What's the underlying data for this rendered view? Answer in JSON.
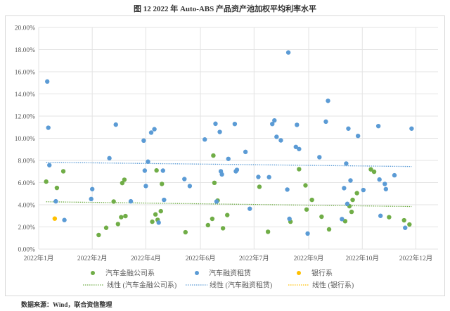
{
  "title": "图 12   2022 年 Auto-ABS 产品资产池加权平均利率水平",
  "source": "数据来源：Wind，联合资信整理",
  "chart_data": {
    "type": "scatter",
    "title": "",
    "xlabel": "",
    "ylabel": "",
    "grid": true,
    "legend_position": "bottom",
    "xlim": [
      "2022-01-01",
      "2023-01-10"
    ],
    "ylim": [
      0,
      20
    ],
    "x_ticks": [
      {
        "date": "2022-01-01",
        "label": "2022年1月"
      },
      {
        "date": "2022-02-20",
        "label": "2022年2月"
      },
      {
        "date": "2022-04-11",
        "label": "2022年4月"
      },
      {
        "date": "2022-06-01",
        "label": "2022年6月"
      },
      {
        "date": "2022-07-21",
        "label": "2022年7月"
      },
      {
        "date": "2022-09-10",
        "label": "2022年9月"
      },
      {
        "date": "2022-10-30",
        "label": "2022年10月"
      },
      {
        "date": "2022-12-19",
        "label": "2022年12月"
      }
    ],
    "y_ticks": [
      {
        "value": 0,
        "label": "0.00%"
      },
      {
        "value": 2,
        "label": "2.00%"
      },
      {
        "value": 4,
        "label": "4.00%"
      },
      {
        "value": 6,
        "label": "6.00%"
      },
      {
        "value": 8,
        "label": "8.00%"
      },
      {
        "value": 10,
        "label": "10.00%"
      },
      {
        "value": 12,
        "label": "12.00%"
      },
      {
        "value": 14,
        "label": "14.00%"
      },
      {
        "value": 16,
        "label": "16.00%"
      },
      {
        "value": 18,
        "label": "18.00%"
      },
      {
        "value": 20,
        "label": "20.00%"
      }
    ],
    "series": [
      {
        "name": "汽车金融公司系",
        "color": "#70ad47",
        "points": [
          [
            "2022-01-08",
            6.09
          ],
          [
            "2022-01-18",
            5.52
          ],
          [
            "2022-01-24",
            7.02
          ],
          [
            "2022-02-26",
            1.27
          ],
          [
            "2022-03-05",
            1.92
          ],
          [
            "2022-03-12",
            4.29
          ],
          [
            "2022-03-16",
            2.26
          ],
          [
            "2022-03-19",
            2.88
          ],
          [
            "2022-03-23",
            2.98
          ],
          [
            "2022-03-20",
            5.96
          ],
          [
            "2022-03-22",
            6.26
          ],
          [
            "2022-04-21",
            7.1
          ],
          [
            "2022-04-26",
            5.88
          ],
          [
            "2022-04-17",
            2.47
          ],
          [
            "2022-04-20",
            3.13
          ],
          [
            "2022-04-22",
            2.64
          ],
          [
            "2022-04-25",
            3.42
          ],
          [
            "2022-05-18",
            1.52
          ],
          [
            "2022-06-13",
            8.44
          ],
          [
            "2022-06-14",
            5.98
          ],
          [
            "2022-06-17",
            4.38
          ],
          [
            "2022-06-08",
            2.16
          ],
          [
            "2022-06-12",
            2.73
          ],
          [
            "2022-06-22",
            1.88
          ],
          [
            "2022-06-26",
            3.07
          ],
          [
            "2022-07-26",
            5.62
          ],
          [
            "2022-08-03",
            1.56
          ],
          [
            "2022-08-24",
            2.47
          ],
          [
            "2022-09-01",
            7.21
          ],
          [
            "2022-09-07",
            5.75
          ],
          [
            "2022-09-08",
            3.57
          ],
          [
            "2022-09-13",
            4.44
          ],
          [
            "2022-09-22",
            2.92
          ],
          [
            "2022-09-29",
            1.78
          ],
          [
            "2022-10-14",
            2.52
          ],
          [
            "2022-10-18",
            3.87
          ],
          [
            "2022-10-21",
            4.44
          ],
          [
            "2022-10-20",
            3.36
          ],
          [
            "2022-10-25",
            5.05
          ],
          [
            "2022-11-07",
            7.19
          ],
          [
            "2022-11-10",
            6.98
          ],
          [
            "2022-11-24",
            2.88
          ],
          [
            "2022-12-08",
            2.6
          ],
          [
            "2022-12-13",
            2.22
          ]
        ]
      },
      {
        "name": "汽车融资租赁",
        "color": "#5b9bd5",
        "points": [
          [
            "2022-01-09",
            15.12
          ],
          [
            "2022-01-10",
            10.95
          ],
          [
            "2022-01-11",
            7.57
          ],
          [
            "2022-01-17",
            4.31
          ],
          [
            "2022-01-25",
            2.62
          ],
          [
            "2022-02-20",
            5.41
          ],
          [
            "2022-02-19",
            4.52
          ],
          [
            "2022-03-08",
            8.2
          ],
          [
            "2022-03-14",
            11.23
          ],
          [
            "2022-03-28",
            4.31
          ],
          [
            "2022-04-09",
            9.79
          ],
          [
            "2022-04-10",
            7.08
          ],
          [
            "2022-04-11",
            5.69
          ],
          [
            "2022-04-13",
            7.89
          ],
          [
            "2022-04-16",
            10.51
          ],
          [
            "2022-04-19",
            10.82
          ],
          [
            "2022-04-27",
            7.08
          ],
          [
            "2022-04-28",
            4.44
          ],
          [
            "2022-04-23",
            2.39
          ],
          [
            "2022-05-17",
            6.32
          ],
          [
            "2022-05-22",
            5.69
          ],
          [
            "2022-06-05",
            9.89
          ],
          [
            "2022-06-15",
            11.31
          ],
          [
            "2022-06-19",
            10.57
          ],
          [
            "2022-06-20",
            7.02
          ],
          [
            "2022-06-21",
            6.74
          ],
          [
            "2022-06-16",
            4.29
          ],
          [
            "2022-06-27",
            8.14
          ],
          [
            "2022-07-03",
            11.29
          ],
          [
            "2022-07-04",
            7.02
          ],
          [
            "2022-07-05",
            7.15
          ],
          [
            "2022-07-13",
            8.77
          ],
          [
            "2022-07-17",
            3.64
          ],
          [
            "2022-07-25",
            6.51
          ],
          [
            "2022-08-04",
            6.49
          ],
          [
            "2022-08-07",
            11.29
          ],
          [
            "2022-08-09",
            11.61
          ],
          [
            "2022-08-11",
            10.13
          ],
          [
            "2022-08-15",
            9.81
          ],
          [
            "2022-08-22",
            17.74
          ],
          [
            "2022-08-21",
            5.37
          ],
          [
            "2022-08-23",
            2.73
          ],
          [
            "2022-08-30",
            11.21
          ],
          [
            "2022-08-29",
            9.22
          ],
          [
            "2022-09-01",
            9.03
          ],
          [
            "2022-09-09",
            1.4
          ],
          [
            "2022-09-20",
            8.29
          ],
          [
            "2022-09-26",
            11.5
          ],
          [
            "2022-09-28",
            13.38
          ],
          [
            "2022-10-11",
            2.71
          ],
          [
            "2022-10-13",
            5.5
          ],
          [
            "2022-10-15",
            7.72
          ],
          [
            "2022-10-17",
            10.87
          ],
          [
            "2022-10-16",
            4.08
          ],
          [
            "2022-10-19",
            6.19
          ],
          [
            "2022-10-26",
            10.21
          ],
          [
            "2022-10-31",
            5.33
          ],
          [
            "2022-11-14",
            11.1
          ],
          [
            "2022-11-15",
            6.28
          ],
          [
            "2022-11-20",
            5.88
          ],
          [
            "2022-11-21",
            5.41
          ],
          [
            "2022-11-16",
            3.0
          ],
          [
            "2022-11-29",
            6.66
          ],
          [
            "2022-12-09",
            1.92
          ],
          [
            "2022-12-15",
            10.87
          ]
        ]
      },
      {
        "name": "银行系",
        "color": "#ffc000",
        "points": [
          [
            "2022-01-16",
            2.75
          ]
        ]
      }
    ],
    "trendlines": [
      {
        "name": "线性 (汽车金融公司系)",
        "color": "#70ad47",
        "start": [
          "2022-01-08",
          4.27
        ],
        "end": [
          "2022-12-15",
          3.84
        ]
      },
      {
        "name": "线性 (汽车融资租赁)",
        "color": "#5b9bd5",
        "start": [
          "2022-01-08",
          7.83
        ],
        "end": [
          "2022-12-15",
          7.45
        ]
      },
      {
        "name": "线性 (银行系)",
        "color": "#ffc000",
        "start": null,
        "end": null
      }
    ]
  }
}
